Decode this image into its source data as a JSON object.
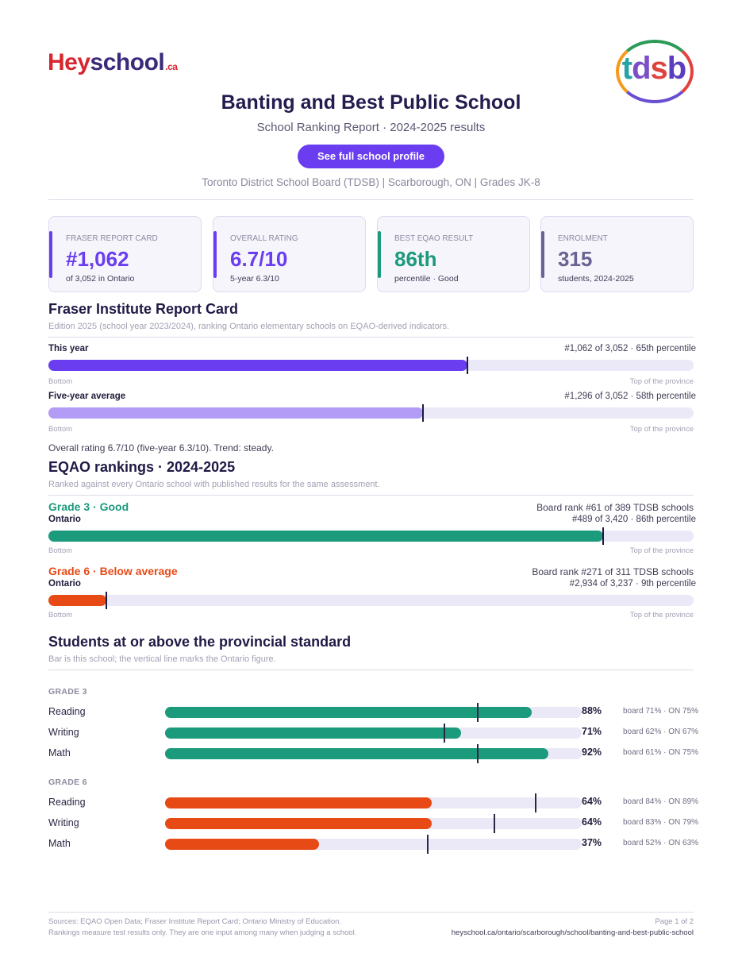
{
  "brand": {
    "hey": "Hey",
    "school": "school",
    "ca": ".ca"
  },
  "board_logo": {
    "t": "t",
    "d": "d",
    "s": "s",
    "b": "b"
  },
  "header": {
    "title": "Banting and Best Public School",
    "subtitle": "School Ranking Report  ·  2024-2025 results",
    "cta_label": "See full school profile",
    "meta": "Toronto District School Board (TDSB)  |  Scarborough, ON  |  Grades JK-8"
  },
  "cards": [
    {
      "label": "FRASER REPORT CARD",
      "value": "#1,062",
      "sub": "of 3,052 in Ontario",
      "color": "#6a3df0"
    },
    {
      "label": "OVERALL RATING",
      "value": "6.7/10",
      "sub": "5-year 6.3/10",
      "color": "#6a3df0"
    },
    {
      "label": "BEST EQAO RESULT",
      "value": "86th",
      "sub": "percentile  ·  Good",
      "color": "#1c9a7c"
    },
    {
      "label": "ENROLMENT",
      "value": "315",
      "sub": "students, 2024-2025",
      "color": "#6a6292"
    }
  ],
  "fraser": {
    "heading": "Fraser Institute Report Card",
    "note": "Edition 2025 (school year 2023/2024), ranking Ontario elementary schools on EQAO-derived indicators.",
    "bars": [
      {
        "label": "This year",
        "right": "#1,062 of 3,052  ·  65th percentile",
        "fraction": 0.65,
        "marker": 0.65,
        "color": "#6a3df0"
      },
      {
        "label": "Five-year average",
        "right": "#1,296 of 3,052  ·  58th percentile",
        "fraction": 0.58,
        "marker": 0.58,
        "color": "#b39cf5"
      }
    ],
    "scale_left": "Bottom",
    "scale_right": "Top of the province",
    "summary": "Overall rating 6.7/10 (five-year 6.3/10). Trend: steady."
  },
  "eqao": {
    "heading": "EQAO rankings  ·  2024-2025",
    "note": "Ranked against every Ontario school with published results for the same assessment.",
    "grades": [
      {
        "head": "Grade 3  ·  Good",
        "board_rank": "Board rank #61 of 389 TDSB schools",
        "sub_label": "Ontario",
        "right": "#489 of 3,420  ·  86th percentile",
        "fraction": 0.86,
        "marker": 0.86,
        "color": "#1c9a7c"
      },
      {
        "head": "Grade 6  ·  Below average",
        "board_rank": "Board rank #271 of 311 TDSB schools",
        "sub_label": "Ontario",
        "right": "#2,934 of 3,237  ·  9th percentile",
        "fraction": 0.09,
        "marker": 0.09,
        "color": "#e84a16"
      }
    ],
    "scale_left": "Bottom",
    "scale_right": "Top of the province"
  },
  "standard": {
    "heading": "Students at or above the provincial standard",
    "note": "Bar is this school; the vertical line marks the Ontario figure.",
    "groups": [
      {
        "title": "GRADE 3",
        "color": "#1c9a7c",
        "rows": [
          {
            "subject": "Reading",
            "pct_label": "88%",
            "value": 88,
            "ontario": 75,
            "compare": "board 71%  ·  ON 75%"
          },
          {
            "subject": "Writing",
            "pct_label": "71%",
            "value": 71,
            "ontario": 67,
            "compare": "board 62%  ·  ON 67%"
          },
          {
            "subject": "Math",
            "pct_label": "92%",
            "value": 92,
            "ontario": 75,
            "compare": "board 61%  ·  ON 75%"
          }
        ]
      },
      {
        "title": "GRADE 6",
        "color": "#e84a16",
        "rows": [
          {
            "subject": "Reading",
            "pct_label": "64%",
            "value": 64,
            "ontario": 89,
            "compare": "board 84%  ·  ON 89%"
          },
          {
            "subject": "Writing",
            "pct_label": "64%",
            "value": 64,
            "ontario": 79,
            "compare": "board 83%  ·  ON 79%"
          },
          {
            "subject": "Math",
            "pct_label": "37%",
            "value": 37,
            "ontario": 63,
            "compare": "board 52%  ·  ON 63%"
          }
        ]
      }
    ]
  },
  "footer": {
    "sources": "Sources: EQAO Open Data; Fraser Institute Report Card; Ontario Ministry of Education.",
    "disclaimer": "Rankings measure test results only. They are one input among many when judging a school.",
    "page": "Page 1 of 2",
    "url": "heyschool.ca/ontario/scarborough/school/banting-and-best-public-school"
  }
}
